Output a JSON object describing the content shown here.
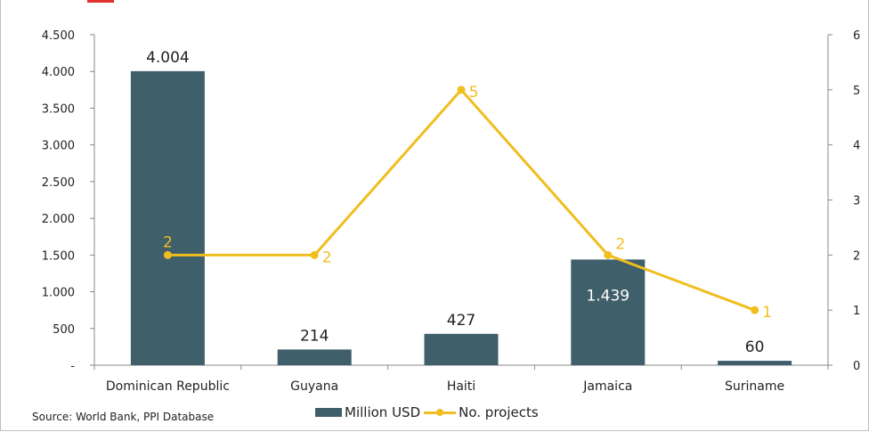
{
  "chart_data": {
    "type": "bar",
    "categories": [
      "Dominican Republic",
      "Guyana",
      "Haiti",
      "Jamaica",
      "Suriname"
    ],
    "series": [
      {
        "name": "Million USD",
        "type": "bar",
        "axis": "left",
        "color": "#3f5f6b",
        "values": [
          4004,
          214,
          427,
          1439,
          60
        ],
        "labels": [
          "4.004",
          "214",
          "427",
          "1.439",
          "60"
        ]
      },
      {
        "name": "No. projects",
        "type": "line",
        "axis": "right",
        "color": "#f0be1e",
        "values": [
          2,
          2,
          5,
          2,
          1
        ],
        "labels": [
          "2",
          "2",
          "5",
          "2",
          "1"
        ]
      }
    ],
    "y_left": {
      "ylim": [
        0,
        4500
      ],
      "ticks": [
        0,
        500,
        1000,
        1500,
        2000,
        2500,
        3000,
        3500,
        4000,
        4500
      ],
      "tick_labels": [
        "-",
        "500",
        "1.000",
        "1.500",
        "2.000",
        "2.500",
        "3.000",
        "3.500",
        "4.000",
        "4.500"
      ]
    },
    "y_right": {
      "ylim": [
        0,
        6
      ],
      "ticks": [
        0,
        1,
        2,
        3,
        4,
        5,
        6
      ],
      "tick_labels": [
        "0",
        "1",
        "2",
        "3",
        "4",
        "5",
        "6"
      ]
    },
    "grid": false,
    "legend": "bottom"
  },
  "source": "Source: World Bank, PPI Database",
  "accent_color": "#e03030"
}
